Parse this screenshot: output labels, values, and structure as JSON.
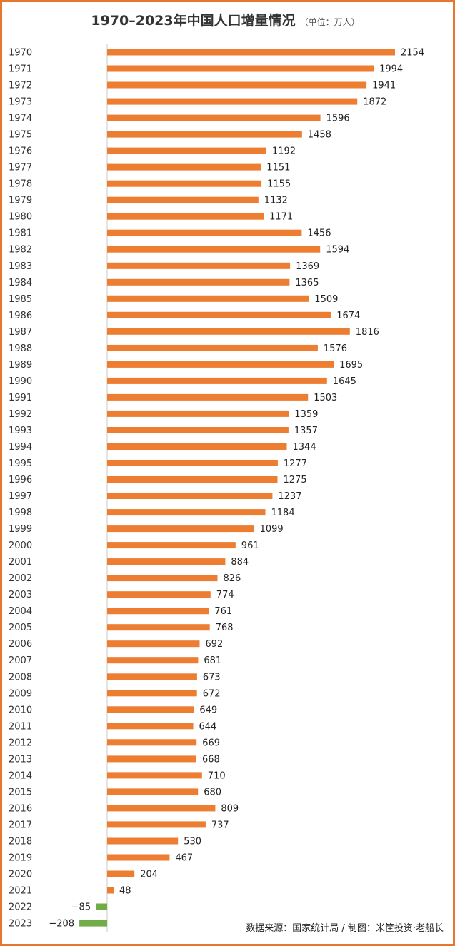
{
  "header": {
    "title": "1970–2023年中国人口增量情况",
    "unit": "（单位：万人）"
  },
  "footer": {
    "source": "数据来源：国家统计局 / 制图：米筐投资·老船长"
  },
  "colors": {
    "positive": "#ed7d31",
    "negative": "#70ad47",
    "border": "#e8772e",
    "axis": "#c8c8c8"
  },
  "chart_data": {
    "type": "bar",
    "orientation": "horizontal",
    "categories": [
      "1970",
      "1971",
      "1972",
      "1973",
      "1974",
      "1975",
      "1976",
      "1977",
      "1978",
      "1979",
      "1980",
      "1981",
      "1982",
      "1983",
      "1984",
      "1985",
      "1986",
      "1987",
      "1988",
      "1989",
      "1990",
      "1991",
      "1992",
      "1993",
      "1994",
      "1995",
      "1996",
      "1997",
      "1998",
      "1999",
      "2000",
      "2001",
      "2002",
      "2003",
      "2004",
      "2005",
      "2006",
      "2007",
      "2008",
      "2009",
      "2010",
      "2011",
      "2012",
      "2013",
      "2014",
      "2015",
      "2016",
      "2017",
      "2018",
      "2019",
      "2020",
      "2021",
      "2022",
      "2023"
    ],
    "values": [
      2154,
      1994,
      1941,
      1872,
      1596,
      1458,
      1192,
      1151,
      1155,
      1132,
      1171,
      1456,
      1594,
      1369,
      1365,
      1509,
      1674,
      1816,
      1576,
      1695,
      1645,
      1503,
      1359,
      1357,
      1344,
      1277,
      1275,
      1237,
      1184,
      1099,
      961,
      884,
      826,
      774,
      761,
      768,
      692,
      681,
      673,
      672,
      649,
      644,
      669,
      668,
      710,
      680,
      809,
      737,
      530,
      467,
      204,
      48,
      -85,
      -208
    ],
    "value_labels": [
      "2154",
      "1994",
      "1941",
      "1872",
      "1596",
      "1458",
      "1192",
      "1151",
      "1155",
      "1132",
      "1171",
      "1456",
      "1594",
      "1369",
      "1365",
      "1509",
      "1674",
      "1816",
      "1576",
      "1695",
      "1645",
      "1503",
      "1359",
      "1357",
      "1344",
      "1277",
      "1275",
      "1237",
      "1184",
      "1099",
      "961",
      "884",
      "826",
      "774",
      "761",
      "768",
      "692",
      "681",
      "673",
      "672",
      "649",
      "644",
      "669",
      "668",
      "710",
      "680",
      "809",
      "737",
      "530",
      "467",
      "204",
      "48",
      "−85",
      "−208"
    ],
    "xlim": [
      -208,
      2154
    ],
    "grid": false,
    "legend": "none"
  }
}
